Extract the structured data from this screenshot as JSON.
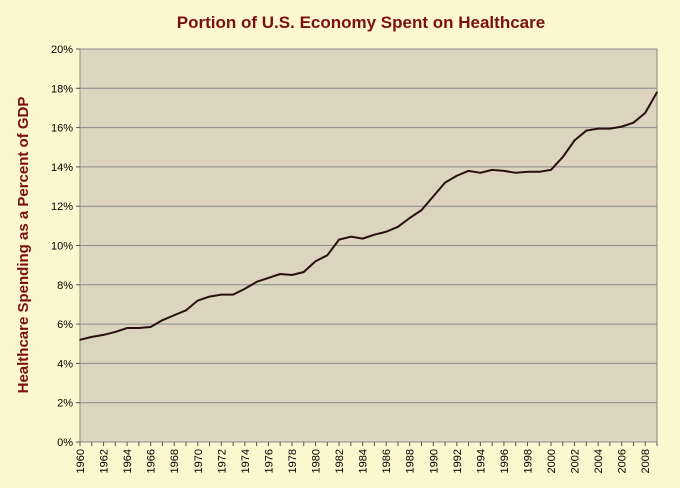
{
  "chart_data": {
    "type": "line",
    "title": "Portion of U.S. Economy Spent on Healthcare",
    "xlabel": "",
    "ylabel": "Healthcare  Spending as a Percent of GDP",
    "ylim": [
      0,
      20
    ],
    "xlim": [
      1960,
      2009
    ],
    "y_ticks": [
      "0%",
      "2%",
      "4%",
      "6%",
      "8%",
      "10%",
      "12%",
      "14%",
      "16%",
      "18%",
      "20%"
    ],
    "x_ticks": [
      "1960",
      "1962",
      "1964",
      "1966",
      "1968",
      "1970",
      "1972",
      "1974",
      "1976",
      "1978",
      "1980",
      "1982",
      "1984",
      "1986",
      "1988",
      "1990",
      "1992",
      "1994",
      "1996",
      "1998",
      "2000",
      "2002",
      "2004",
      "2006",
      "2008"
    ],
    "grid": true,
    "legend": "none",
    "colors": {
      "plot_background": "#ddd4bf",
      "page_background": "#fdf7cf",
      "line": "#2a0f0f",
      "title": "#7a1010",
      "grid": "#8a8a8a"
    },
    "series": [
      {
        "x": [
          1960,
          1961,
          1962,
          1963,
          1964,
          1965,
          1966,
          1967,
          1968,
          1969,
          1970,
          1971,
          1972,
          1973,
          1974,
          1975,
          1976,
          1977,
          1978,
          1979,
          1980,
          1981,
          1982,
          1983,
          1984,
          1985,
          1986,
          1987,
          1988,
          1989,
          1990,
          1991,
          1992,
          1993,
          1994,
          1995,
          1996,
          1997,
          1998,
          1999,
          2000,
          2001,
          2002,
          2003,
          2004,
          2005,
          2006,
          2007,
          2008,
          2009
        ],
        "values": [
          5.2,
          5.35,
          5.45,
          5.6,
          5.8,
          5.8,
          5.85,
          6.2,
          6.45,
          6.7,
          7.2,
          7.4,
          7.5,
          7.5,
          7.8,
          8.15,
          8.35,
          8.55,
          8.5,
          8.65,
          9.2,
          9.5,
          10.3,
          10.45,
          10.35,
          10.55,
          10.7,
          10.95,
          11.4,
          11.8,
          12.5,
          13.2,
          13.55,
          13.8,
          13.7,
          13.85,
          13.8,
          13.7,
          13.75,
          13.75,
          13.85,
          14.5,
          15.35,
          15.85,
          15.95,
          15.95,
          16.05,
          16.25,
          16.75,
          17.8
        ]
      }
    ]
  }
}
